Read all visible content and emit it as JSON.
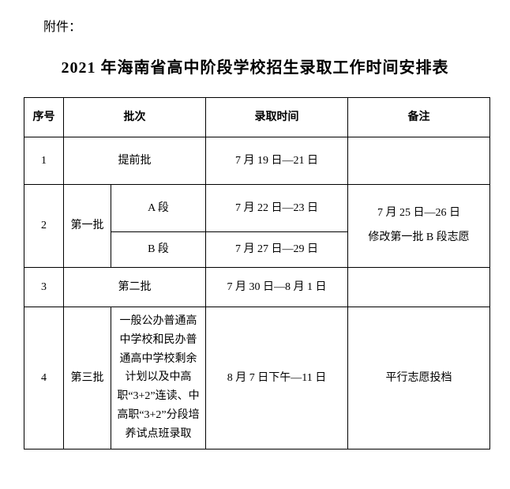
{
  "attachment_label": "附件：",
  "title": "2021 年海南省高中阶段学校招生录取工作时间安排表",
  "headers": {
    "seq": "序号",
    "batch": "批次",
    "time": "录取时间",
    "note": "备注"
  },
  "rows": {
    "r1": {
      "seq": "1",
      "batch": "提前批",
      "time": "7 月 19 日—21 日",
      "note": ""
    },
    "r2": {
      "seq": "2",
      "batch_main": "第一批",
      "sub_a": "A 段",
      "time_a": "7 月 22 日—23 日",
      "sub_b": "B 段",
      "time_b": "7 月 27 日—29 日",
      "note": "7 月 25 日—26 日\n修改第一批 B 段志愿"
    },
    "r3": {
      "seq": "3",
      "batch": "第二批",
      "time": "7 月 30 日—8 月 1 日",
      "note": ""
    },
    "r4": {
      "seq": "4",
      "batch_main": "第三批",
      "batch_desc": "一般公办普通高中学校和民办普通高中学校剩余计划以及中高职“3+2”连读、中高职“3+2”分段培养试点班录取",
      "time": "8 月 7 日下午—11 日",
      "note": "平行志愿投档"
    }
  },
  "colors": {
    "background": "#ffffff",
    "text": "#000000",
    "border": "#000000"
  },
  "typography": {
    "title_fontsize": 20,
    "header_fontsize": 14,
    "cell_fontsize": 14,
    "attachment_fontsize": 16,
    "font_family": "SimSun"
  },
  "layout": {
    "col_widths": {
      "seq": 50,
      "batch": 180,
      "time": 180,
      "note": 180
    }
  }
}
